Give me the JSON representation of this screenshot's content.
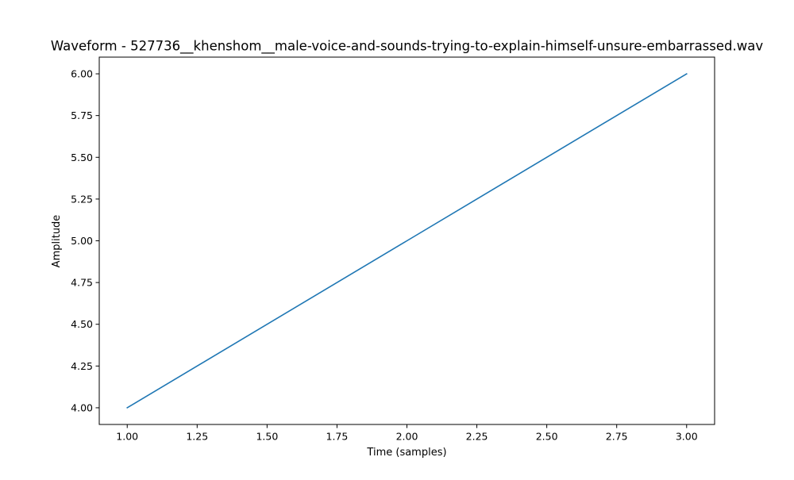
{
  "chart_data": {
    "type": "line",
    "title": "Waveform - 527736__khenshom__male-voice-and-sounds-trying-to-explain-himself-unsure-embarrassed.wav",
    "xlabel": "Time (samples)",
    "ylabel": "Amplitude",
    "x": [
      1,
      2,
      3
    ],
    "series": [
      {
        "values": [
          4,
          5,
          6
        ],
        "color": "#1f77b4"
      }
    ],
    "xlim": [
      0.9,
      3.1
    ],
    "ylim": [
      3.9,
      6.1
    ],
    "xticks": [
      1.0,
      1.25,
      1.5,
      1.75,
      2.0,
      2.25,
      2.5,
      2.75,
      3.0
    ],
    "xtick_labels": [
      "1.00",
      "1.25",
      "1.50",
      "1.75",
      "2.00",
      "2.25",
      "2.50",
      "2.75",
      "3.00"
    ],
    "yticks": [
      4.0,
      4.25,
      4.5,
      4.75,
      5.0,
      5.25,
      5.5,
      5.75,
      6.0
    ],
    "ytick_labels": [
      "4.00",
      "4.25",
      "4.50",
      "4.75",
      "5.00",
      "5.25",
      "5.50",
      "5.75",
      "6.00"
    ],
    "grid": false,
    "legend": "none"
  }
}
